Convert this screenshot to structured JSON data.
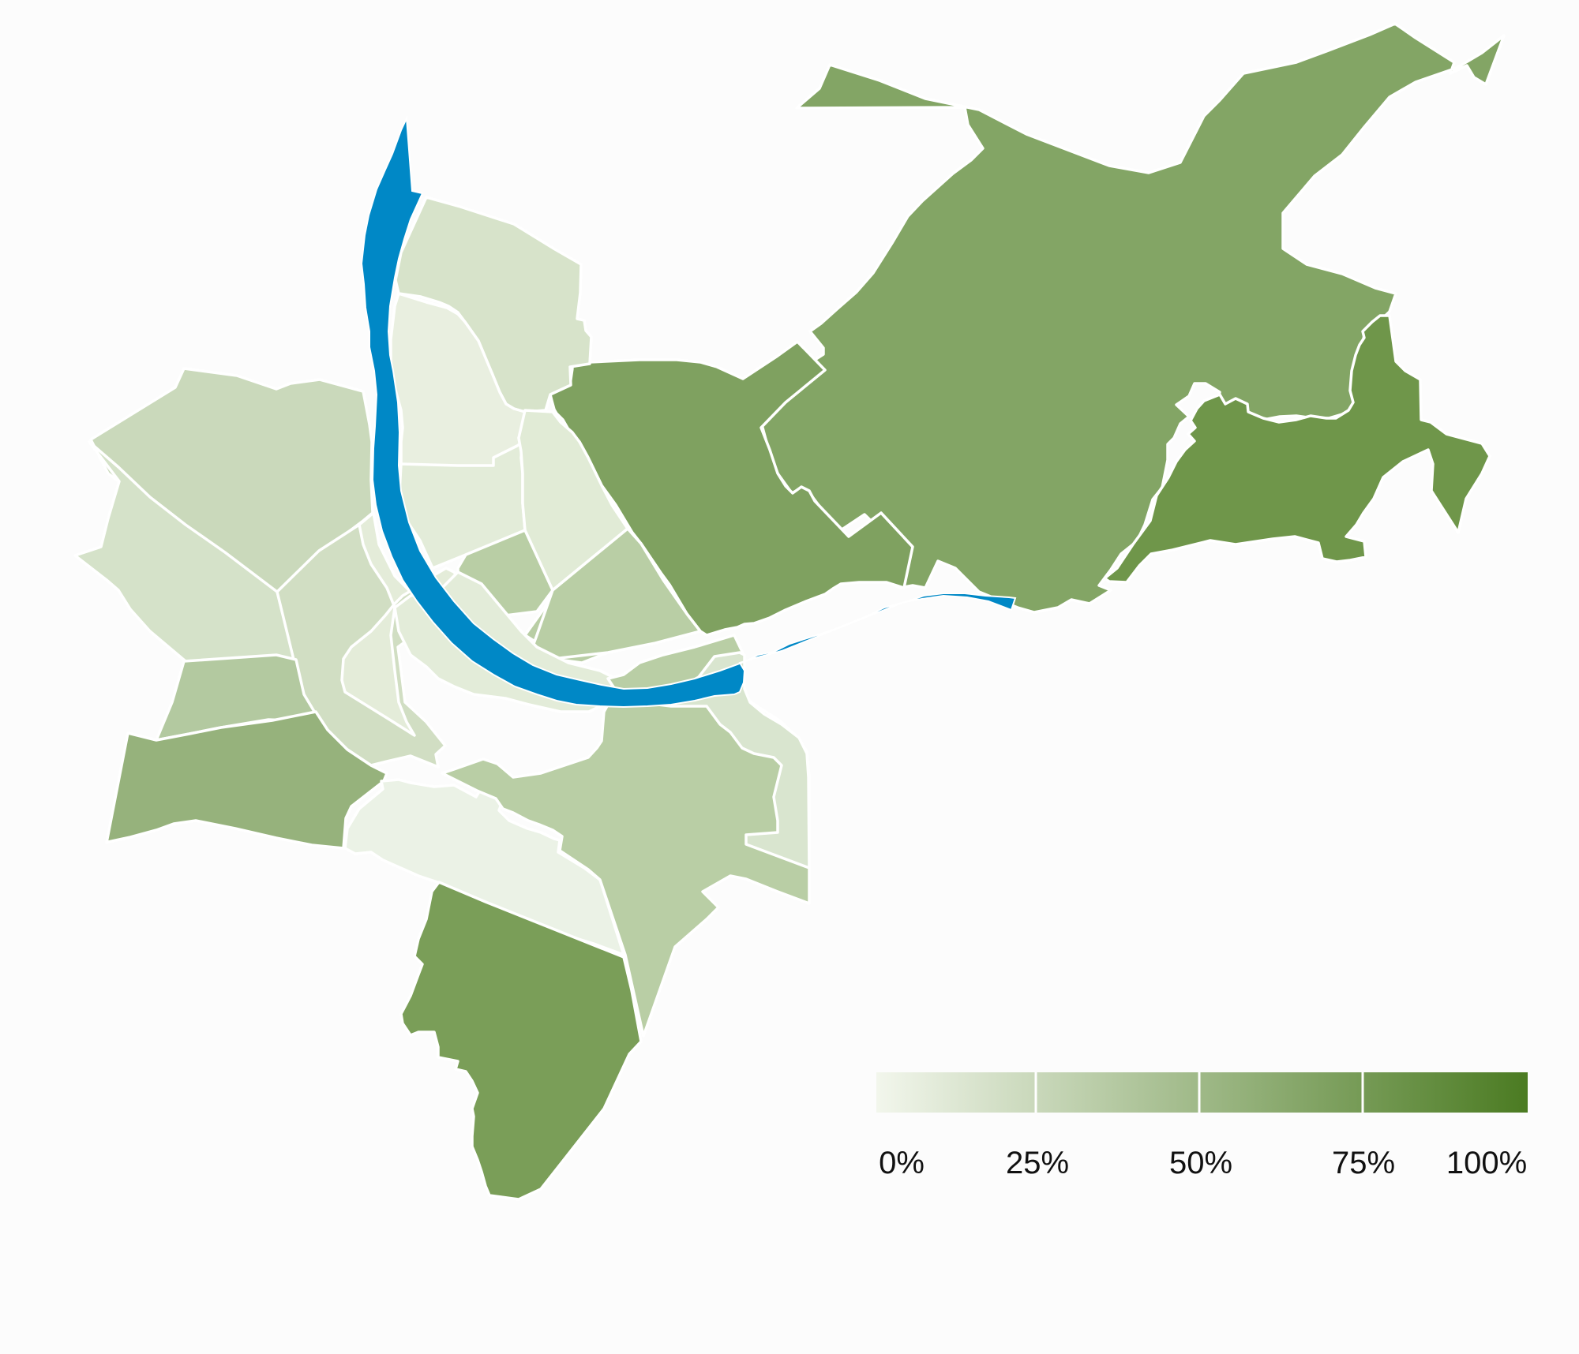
{
  "map": {
    "colors": {
      "background": "#fcfcfc",
      "river": "#0088c6",
      "border": "#ffffff",
      "scale_start": "#f2f6ec",
      "scale_end": "#4b7b22"
    },
    "legend": {
      "tick_labels": [
        "0%",
        "25%",
        "50%",
        "75%",
        "100%"
      ]
    },
    "regions": [
      {
        "id": "riehen",
        "share": 0.52,
        "color": "#83a565"
      },
      {
        "id": "bettingen",
        "share": 0.7,
        "color": "#6f964a"
      },
      {
        "id": "hirzbrunnen",
        "share": 0.62,
        "color": "#7fa160"
      },
      {
        "id": "st-johann",
        "share": 0.15,
        "color": "#d7e3ca"
      },
      {
        "id": "matthaeus",
        "share": 0.08,
        "color": "#e9efe0"
      },
      {
        "id": "clara",
        "share": 0.06,
        "color": "#e3ecd9"
      },
      {
        "id": "rosental",
        "share": 0.05,
        "color": "#e1ebd6"
      },
      {
        "id": "wettstein",
        "share": 0.3,
        "color": "#b9cea5"
      },
      {
        "id": "iselin",
        "share": 0.2,
        "color": "#cad9bb"
      },
      {
        "id": "gotthelf",
        "share": 0.15,
        "color": "#d5e2c9"
      },
      {
        "id": "am-ring",
        "share": 0.18,
        "color": "#d1dec3"
      },
      {
        "id": "vorstaedte",
        "share": 0.05,
        "color": "#e4ecd9"
      },
      {
        "id": "altstadt-grossbasel",
        "share": 0.06,
        "color": "#e3ecd9"
      },
      {
        "id": "bachletten",
        "share": 0.32,
        "color": "#b3c9a0"
      },
      {
        "id": "neubad",
        "share": 0.45,
        "color": "#96b27c"
      },
      {
        "id": "gundeldingen",
        "share": 0.04,
        "color": "#ebf2e6"
      },
      {
        "id": "st-alban",
        "share": 0.3,
        "color": "#b9cea5"
      },
      {
        "id": "breite",
        "share": 0.12,
        "color": "#d9e5cf"
      },
      {
        "id": "bruderholz",
        "share": 0.62,
        "color": "#7a9e58"
      }
    ]
  }
}
